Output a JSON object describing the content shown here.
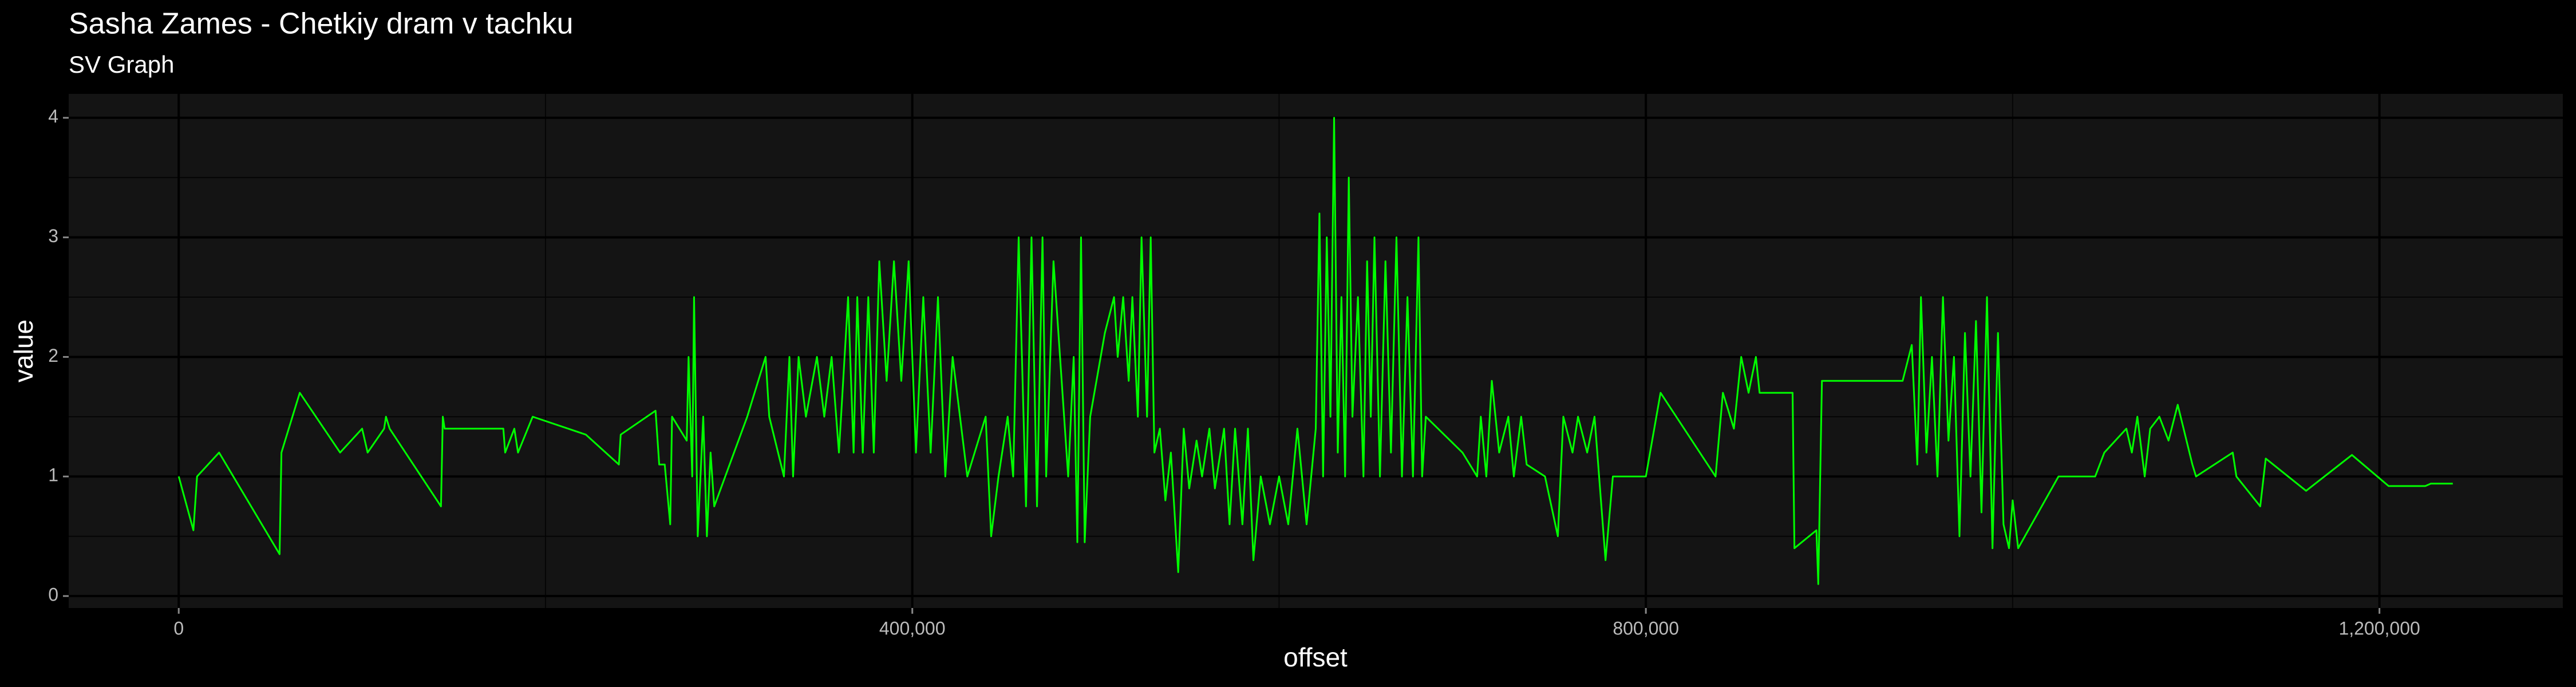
{
  "chart_data": {
    "type": "line",
    "title": "Sasha Zames - Chetkiy dram v tachku",
    "subtitle": "SV Graph",
    "x_label": "offset",
    "y_label": "value",
    "color": "#00ff00",
    "grid": true,
    "xlim": [
      -60000,
      1300000
    ],
    "ylim": [
      -0.1,
      4.2
    ],
    "xticks": [
      0,
      {
        "value": 400000,
        "label": "400,000"
      },
      {
        "value": 800000,
        "label": "800,000"
      },
      {
        "value": 1200000,
        "label": "1,200,000"
      }
    ],
    "yticks": [
      0,
      1,
      2,
      3,
      4
    ],
    "x": [
      0,
      8000,
      10000,
      22000,
      55000,
      56000,
      66000,
      88000,
      100000,
      103000,
      112000,
      113000,
      115000,
      143000,
      144000,
      145000,
      177000,
      178000,
      183000,
      185000,
      193000,
      222000,
      240000,
      241000,
      260000,
      262000,
      265000,
      268000,
      269000,
      277000,
      278000,
      280000,
      281000,
      283000,
      286000,
      288000,
      290000,
      292000,
      310000,
      320000,
      322000,
      330000,
      333000,
      335000,
      338000,
      342000,
      348000,
      352000,
      356000,
      360000,
      365000,
      368000,
      370000,
      373000,
      376000,
      379000,
      382000,
      386000,
      390000,
      394000,
      398000,
      402000,
      406000,
      410000,
      414000,
      418000,
      422000,
      430000,
      440000,
      443000,
      447000,
      452000,
      455000,
      458000,
      462000,
      465000,
      468000,
      471000,
      473000,
      477000,
      485000,
      488000,
      490000,
      492000,
      494000,
      497000,
      505000,
      510000,
      512000,
      515000,
      518000,
      520000,
      523000,
      525000,
      528000,
      530000,
      532000,
      535000,
      538000,
      541000,
      545000,
      548000,
      551000,
      555000,
      558000,
      562000,
      565000,
      570000,
      573000,
      576000,
      580000,
      583000,
      586000,
      590000,
      595000,
      600000,
      605000,
      610000,
      615000,
      620000,
      622000,
      624000,
      626000,
      628000,
      630000,
      632000,
      634000,
      636000,
      638000,
      640000,
      643000,
      646000,
      648000,
      650000,
      652000,
      655000,
      658000,
      661000,
      664000,
      667000,
      670000,
      673000,
      676000,
      678000,
      680000,
      700000,
      708000,
      710000,
      713000,
      716000,
      720000,
      725000,
      728000,
      732000,
      735000,
      745000,
      752000,
      755000,
      760000,
      763000,
      768000,
      772000,
      778000,
      782000,
      800000,
      808000,
      838000,
      842000,
      848000,
      852000,
      856000,
      860000,
      862000,
      880000,
      881000,
      893000,
      894000,
      896000,
      940000,
      945000,
      948000,
      950000,
      953000,
      956000,
      959000,
      962000,
      965000,
      968000,
      971000,
      974000,
      977000,
      980000,
      983000,
      986000,
      989000,
      992000,
      995000,
      998000,
      1000000,
      1003000,
      1025000,
      1045000,
      1050000,
      1062000,
      1065000,
      1068000,
      1072000,
      1075000,
      1080000,
      1085000,
      1090000,
      1098000,
      1100000,
      1120000,
      1122000,
      1135000,
      1138000,
      1160000,
      1185000,
      1205000,
      1225000,
      1228000,
      1240000
    ],
    "values": [
      1.0,
      0.55,
      1.0,
      1.2,
      0.35,
      1.2,
      1.7,
      1.2,
      1.4,
      1.2,
      1.4,
      1.5,
      1.4,
      0.75,
      1.5,
      1.4,
      1.4,
      1.2,
      1.4,
      1.2,
      1.5,
      1.35,
      1.1,
      1.35,
      1.55,
      1.1,
      1.1,
      0.6,
      1.5,
      1.3,
      2.0,
      1.0,
      2.5,
      0.5,
      1.5,
      0.5,
      1.2,
      0.75,
      1.5,
      2.0,
      1.5,
      1.0,
      2.0,
      1.0,
      2.0,
      1.5,
      2.0,
      1.5,
      2.0,
      1.2,
      2.5,
      1.2,
      2.5,
      1.2,
      2.5,
      1.2,
      2.8,
      1.8,
      2.8,
      1.8,
      2.8,
      1.2,
      2.5,
      1.2,
      2.5,
      1.0,
      2.0,
      1.0,
      1.5,
      0.5,
      1.0,
      1.5,
      1.0,
      3.0,
      0.75,
      3.0,
      0.75,
      3.0,
      1.0,
      2.8,
      1.0,
      2.0,
      0.45,
      3.0,
      0.45,
      1.5,
      2.2,
      2.5,
      2.0,
      2.5,
      1.8,
      2.5,
      1.5,
      3.0,
      1.5,
      3.0,
      1.2,
      1.4,
      0.8,
      1.2,
      0.2,
      1.4,
      0.9,
      1.3,
      1.0,
      1.4,
      0.9,
      1.4,
      0.6,
      1.4,
      0.6,
      1.4,
      0.3,
      1.0,
      0.6,
      1.0,
      0.6,
      1.4,
      0.6,
      1.4,
      3.2,
      1.0,
      3.0,
      1.5,
      4.0,
      1.2,
      2.5,
      1.0,
      3.5,
      1.5,
      2.5,
      1.0,
      2.8,
      1.5,
      3.0,
      1.0,
      2.8,
      1.2,
      3.0,
      1.0,
      2.5,
      1.0,
      3.0,
      1.0,
      1.5,
      1.2,
      1.0,
      1.5,
      1.0,
      1.8,
      1.2,
      1.5,
      1.0,
      1.5,
      1.1,
      1.0,
      0.5,
      1.5,
      1.2,
      1.5,
      1.2,
      1.5,
      0.3,
      1.0,
      1.0,
      1.7,
      1.0,
      1.7,
      1.4,
      2.0,
      1.7,
      2.0,
      1.7,
      1.7,
      0.4,
      0.55,
      0.1,
      1.8,
      1.8,
      2.1,
      1.1,
      2.5,
      1.2,
      2.0,
      1.0,
      2.5,
      1.3,
      2.0,
      0.5,
      2.2,
      1.0,
      2.3,
      0.7,
      2.5,
      0.4,
      2.2,
      0.6,
      0.4,
      0.8,
      0.4,
      1.0,
      1.0,
      1.2,
      1.4,
      1.2,
      1.5,
      1.0,
      1.4,
      1.5,
      1.3,
      1.6,
      1.1,
      1.0,
      1.2,
      1.0,
      0.75,
      1.15,
      0.88,
      1.18,
      0.92,
      0.92,
      0.94,
      0.94
    ]
  }
}
